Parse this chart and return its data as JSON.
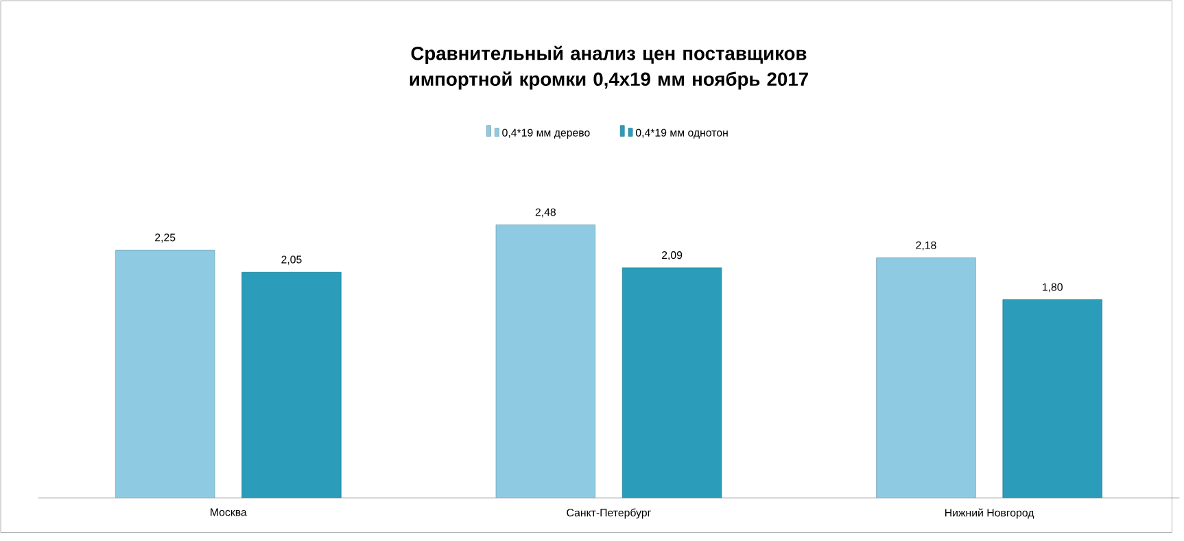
{
  "chart_data": {
    "type": "bar",
    "title": "Сравнительный анализ цен поставщиков импортной кромки 0,4х19 мм ноябрь 2017",
    "categories": [
      "Москва",
      "Санкт-Петербург",
      "Нижний Новгород"
    ],
    "legend": "top",
    "series": [
      {
        "name": "0,4*19 мм дерево",
        "color": "#8ecae2",
        "values": [
          2.25,
          2.48,
          2.18
        ],
        "value_labels": [
          "2,25",
          "2,48",
          "2,18"
        ]
      },
      {
        "name": "0,4*19 мм однотон",
        "color": "#2b9cba",
        "values": [
          2.05,
          2.09,
          1.8
        ],
        "value_labels": [
          "2,05",
          "2,09",
          "1,80"
        ]
      }
    ]
  }
}
